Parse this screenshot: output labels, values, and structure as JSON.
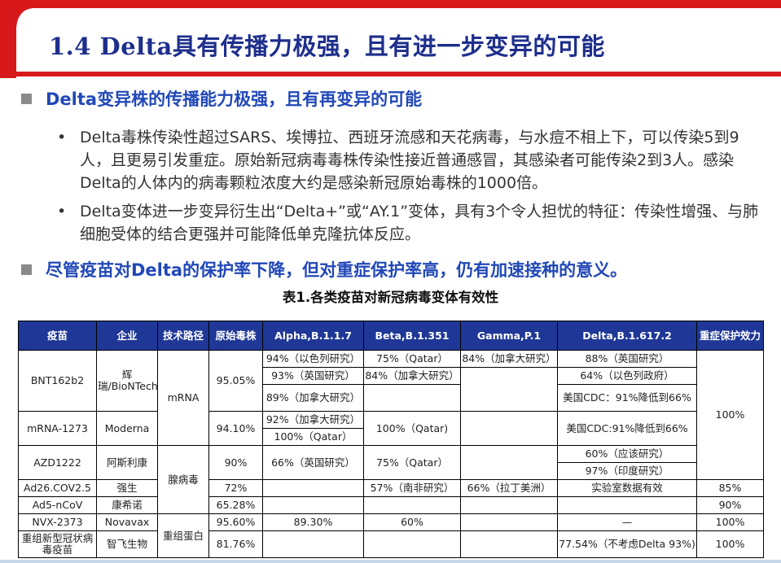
{
  "slide": {
    "title": "1.4 Delta具有传播力极强，且有进一步变异的可能",
    "colors": {
      "accent_red": "#d7191c",
      "title_blue": "#1e2f8c",
      "section_blue": "#2148b8",
      "table_header": "#1f3796"
    }
  },
  "sections": [
    {
      "text": "Delta变异株的传播能力极强，且有再变异的可能"
    },
    {
      "text": "尽管疫苗对Delta的保护率下降，但对重症保护率高，仍有加速接种的意义。"
    }
  ],
  "bullets": [
    {
      "text": "Delta毒株传染性超过SARS、埃博拉、西班牙流感和天花病毒，与水痘不相上下，可以传染5到9人，且更易引发重症。原始新冠病毒毒株传染性接近普通感冒，其感染者可能传染2到3人。感染Delta的人体内的病毒颗粒浓度大约是感染新冠原始毒株的1000倍。"
    },
    {
      "text": "Delta变体进一步变异衍生出“Delta+”或“AY.1”变体，具有3个令人担忧的特征：传染性增强、与肺细胞受体的结合更强并可能降低单克隆抗体反应。"
    }
  ],
  "table": {
    "title": "表1.各类疫苗对新冠病毒变体有效性",
    "headers": [
      "疫苗",
      "企业",
      "技术路径",
      "原始毒株",
      "Alpha,B.1.1.7",
      "Beta,B.1.351",
      "Gamma,P.1",
      "Delta,B.1.617.2",
      "重症保护效力"
    ],
    "bnt": {
      "vaccine": "BNT162b2",
      "company": "辉瑞/BioNTech",
      "original": "95.05%",
      "alpha": [
        "94%（以色列研究）",
        "93%（英国研究）",
        "89%（加拿大研究）"
      ],
      "beta": [
        "75%（Qatar）",
        "84%（加拿大研究）"
      ],
      "gamma": "84%（加拿大研究）",
      "delta": [
        "88%（英国研究）",
        "64%（以色列政府）",
        "美国CDC：91%降低到66%"
      ]
    },
    "moderna": {
      "vaccine": "mRNA-1273",
      "company": "Moderna",
      "original": "94.10%",
      "alpha": [
        "92%（加拿大研究）",
        "100%（Qatar）"
      ],
      "beta": "100%（Qatar)",
      "delta": "美国CDC:91%降低到66%"
    },
    "mrna_tech": "mRNA",
    "azd": {
      "vaccine": "AZD1222",
      "company": "阿斯利康",
      "original": "90%",
      "alpha": "66%（英国研究）",
      "beta": "75%（Qatar）",
      "delta": [
        "60%（应该研究）",
        "97%（印度研究）"
      ]
    },
    "ad26": {
      "vaccine": "Ad26.COV2.5",
      "company": "强生",
      "original": "72%",
      "beta": "57%（南非研究）",
      "gamma": "66%（拉丁美洲）",
      "delta": "实验室数据有效",
      "severe": "85%"
    },
    "ad5": {
      "vaccine": "Ad5-nCoV",
      "company": "康希诺",
      "original": "65.28%",
      "severe": "90%"
    },
    "adeno_tech": "腺病毒",
    "nvx": {
      "vaccine": "NVX-2373",
      "company": "Novavax",
      "original": "95.60%",
      "alpha": "89.30%",
      "beta": "60%",
      "delta": "—",
      "severe": "100%"
    },
    "zf": {
      "vaccine": "重组新型冠状病毒疫苗",
      "company": "智飞生物",
      "original": "81.76%",
      "delta": "77.54%（不考虑Delta 93%)",
      "severe": "100%"
    },
    "protein_tech": "重组蛋白",
    "mrna_azd_severe": "100%"
  }
}
